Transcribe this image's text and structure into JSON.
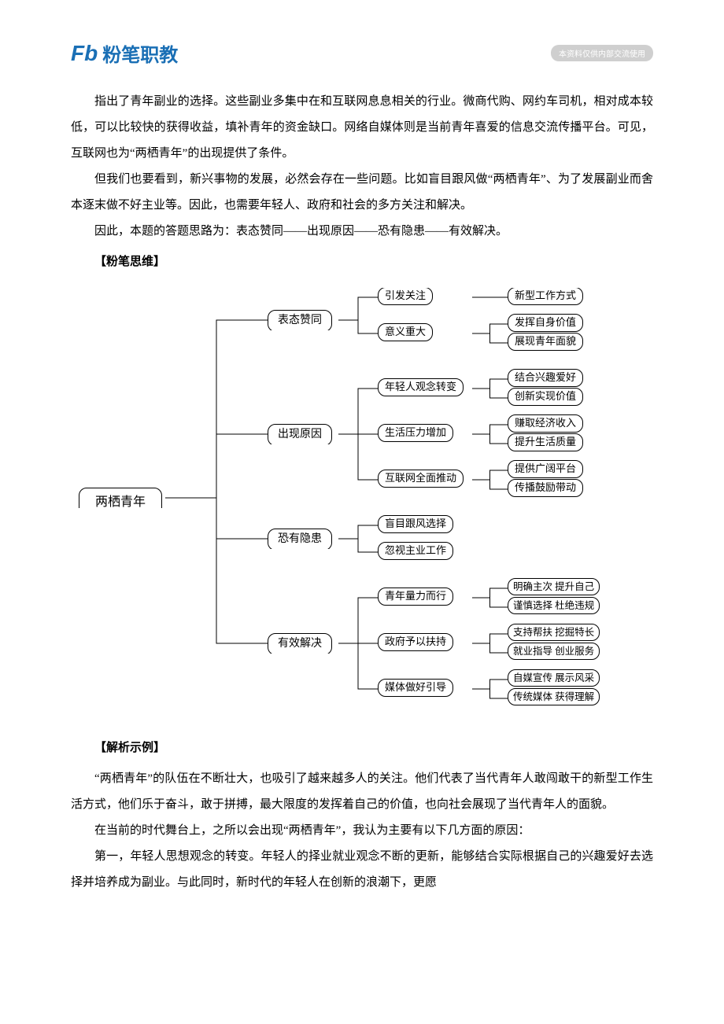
{
  "header": {
    "logo_icon": "Fb",
    "logo_text": "粉笔职教",
    "badge": "本资料仅供内部交流使用"
  },
  "paragraphs_top": [
    "指出了青年副业的选择。这些副业多集中在和互联网息息相关的行业。微商代购、网约车司机，相对成本较低，可以比较快的获得收益，填补青年的资金缺口。网络自媒体则是当前青年喜爱的信息交流传播平台。可见，互联网也为“两栖青年”的出现提供了条件。",
    "但我们也要看到，新兴事物的发展，必然会存在一些问题。比如盲目跟风做“两栖青年”、为了发展副业而舍本逐末做不好主业等。因此，也需要年轻人、政府和社会的多方关注和解决。",
    "因此，本题的答题思路为：表态赞同——出现原因——恐有隐患——有效解决。"
  ],
  "label_thinking": "【粉笔思维】",
  "label_example": "【解析示例】",
  "paragraphs_bottom": [
    "“两栖青年”的队伍在不断壮大，也吸引了越来越多人的关注。他们代表了当代青年人敢闯敢干的新型工作生活方式，他们乐于奋斗，敢于拼搏，最大限度的发挥着自己的价值，也向社会展现了当代青年人的面貌。",
    "在当前的时代舞台上，之所以会出现“两栖青年”，我认为主要有以下几方面的原因：",
    "第一，年轻人思想观念的转变。年轻人的择业就业观念不断的更新，能够结合实际根据自己的兴趣爱好去选择并培养成为副业。与此同时，新时代的年轻人在创新的浪潮下，更愿"
  ],
  "mindmap": {
    "type": "tree",
    "stroke_color": "#000000",
    "background_color": "#ffffff",
    "node_border_radius": 10,
    "font_family": "SimSun",
    "root": {
      "label": "两栖青年"
    },
    "branches": [
      {
        "label": "表态赞同",
        "children": [
          {
            "label": "引发关注",
            "leaves": [
              "新型工作方式"
            ]
          },
          {
            "label": "意义重大",
            "leaves": [
              "发挥自身价值",
              "展现青年面貌"
            ]
          }
        ]
      },
      {
        "label": "出现原因",
        "children": [
          {
            "label": "年轻人观念转变",
            "leaves": [
              "结合兴趣爱好",
              "创新实现价值"
            ]
          },
          {
            "label": "生活压力增加",
            "leaves": [
              "赚取经济收入",
              "提升生活质量"
            ]
          },
          {
            "label": "互联网全面推动",
            "leaves": [
              "提供广阔平台",
              "传播鼓励带动"
            ]
          }
        ]
      },
      {
        "label": "恐有隐患",
        "children": [
          {
            "label": "盲目跟风选择",
            "leaves": []
          },
          {
            "label": "忽视主业工作",
            "leaves": []
          }
        ]
      },
      {
        "label": "有效解决",
        "children": [
          {
            "label": "青年量力而行",
            "leaves": [
              "明确主次  提升自己",
              "谨慎选择  杜绝违规"
            ]
          },
          {
            "label": "政府予以扶持",
            "leaves": [
              "支持帮扶  挖掘特长",
              "就业指导  创业服务"
            ]
          },
          {
            "label": "媒体做好引导",
            "leaves": [
              "自媒宣传  展示风采",
              "传统媒体  获得理解"
            ]
          }
        ]
      }
    ]
  }
}
